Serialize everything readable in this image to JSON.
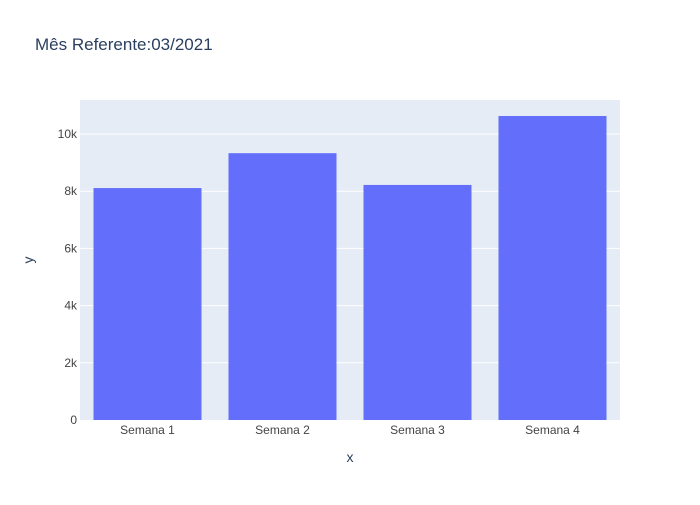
{
  "chart_data": {
    "type": "bar",
    "title": "Mês Referente:03/2021",
    "xlabel": "x",
    "ylabel": "y",
    "categories": [
      "Semana 1",
      "Semana 2",
      "Semana 3",
      "Semana 4"
    ],
    "values": [
      8110,
      9330,
      8220,
      10630
    ],
    "ylim": [
      0,
      11190
    ],
    "yticks": [
      0,
      2000,
      4000,
      6000,
      8000,
      10000
    ],
    "ytick_labels": [
      "0",
      "2k",
      "4k",
      "6k",
      "8k",
      "10k"
    ],
    "grid": true,
    "colors": {
      "bar": "#636efa",
      "plot_background": "#e5ecf6",
      "gridline": "#ffffff",
      "text": "#2a3f5f",
      "tick_text": "#444444"
    }
  }
}
